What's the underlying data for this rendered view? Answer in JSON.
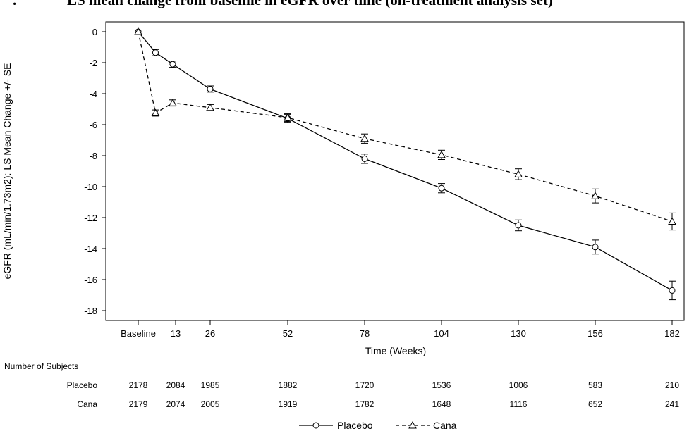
{
  "title": {
    "number": ".",
    "text": "LS mean change from baseline in eGFR over time (on-treatment analysis set)"
  },
  "chart_data": {
    "type": "line",
    "xlabel": "Time (Weeks)",
    "ylabel": "eGFR (mL/min/1.73m2): LS Mean Change +/- SE",
    "ylim": [
      -18,
      0
    ],
    "yticks": [
      0,
      -2,
      -4,
      -6,
      -8,
      -10,
      -12,
      -14,
      -16,
      -18
    ],
    "xticks": [
      {
        "value": 0,
        "label": "Baseline"
      },
      {
        "value": 13,
        "label": "13"
      },
      {
        "value": 26,
        "label": "26"
      },
      {
        "value": 52,
        "label": "52"
      },
      {
        "value": 78,
        "label": "78"
      },
      {
        "value": 104,
        "label": "104"
      },
      {
        "value": 130,
        "label": "130"
      },
      {
        "value": 156,
        "label": "156"
      },
      {
        "value": 182,
        "label": "182"
      }
    ],
    "grid": false,
    "legend_position": "bottom-center",
    "series": [
      {
        "name": "Placebo",
        "line_style": "solid",
        "marker": "circle",
        "points": [
          {
            "x": 0,
            "y": 0.0,
            "se": 0.0
          },
          {
            "x": 6,
            "y": -1.35,
            "se": 0.2
          },
          {
            "x": 12,
            "y": -2.1,
            "se": 0.2
          },
          {
            "x": 26,
            "y": -3.7,
            "se": 0.2
          },
          {
            "x": 52,
            "y": -5.6,
            "se": 0.25
          },
          {
            "x": 78,
            "y": -8.2,
            "se": 0.3
          },
          {
            "x": 104,
            "y": -10.1,
            "se": 0.3
          },
          {
            "x": 130,
            "y": -12.5,
            "se": 0.35
          },
          {
            "x": 156,
            "y": -13.9,
            "se": 0.45
          },
          {
            "x": 182,
            "y": -16.7,
            "se": 0.6
          }
        ]
      },
      {
        "name": "Cana",
        "line_style": "dashed",
        "marker": "triangle",
        "points": [
          {
            "x": 0,
            "y": 0.0,
            "se": 0.0
          },
          {
            "x": 6,
            "y": -5.25,
            "se": 0.2
          },
          {
            "x": 12,
            "y": -4.6,
            "se": 0.2
          },
          {
            "x": 26,
            "y": -4.9,
            "se": 0.2
          },
          {
            "x": 52,
            "y": -5.55,
            "se": 0.25
          },
          {
            "x": 78,
            "y": -6.9,
            "se": 0.3
          },
          {
            "x": 104,
            "y": -7.95,
            "se": 0.3
          },
          {
            "x": 130,
            "y": -9.2,
            "se": 0.35
          },
          {
            "x": 156,
            "y": -10.6,
            "se": 0.45
          },
          {
            "x": 182,
            "y": -12.25,
            "se": 0.55
          }
        ]
      }
    ]
  },
  "subjects_table": {
    "header": "Number of Subjects",
    "rows": [
      {
        "label": "Placebo",
        "values": [
          "2178",
          "2084",
          "1985",
          "1882",
          "1720",
          "1536",
          "1006",
          "583",
          "210"
        ]
      },
      {
        "label": "Cana",
        "values": [
          "2179",
          "2074",
          "2005",
          "1919",
          "1782",
          "1648",
          "1116",
          "652",
          "241"
        ]
      }
    ]
  },
  "legend": [
    {
      "name": "Placebo",
      "line_style": "solid",
      "marker": "circle"
    },
    {
      "name": "Cana",
      "line_style": "dashed",
      "marker": "triangle"
    }
  ]
}
